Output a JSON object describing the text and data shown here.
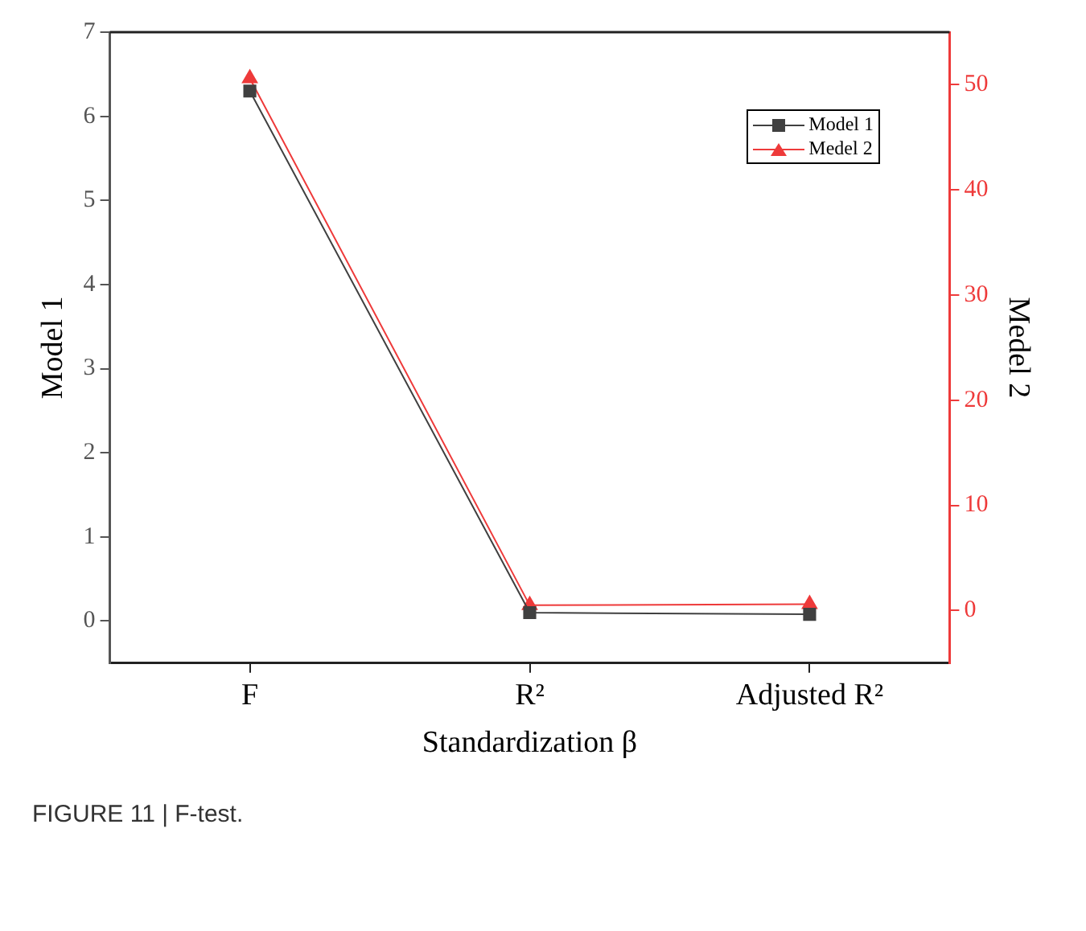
{
  "chart_data": {
    "type": "line",
    "xlabel": "Standardization β",
    "ylabel": "Model 1",
    "y2label": "Medel 2",
    "categories": [
      "F",
      "R²",
      "Adjusted R²"
    ],
    "series": [
      {
        "name": "Model 1",
        "color": "#404040",
        "values": [
          6.3,
          0.1,
          0.08
        ],
        "marker": "square"
      },
      {
        "name": "Medel 2",
        "color": "#ee3a3a",
        "values": [
          50.6,
          0.5,
          0.6
        ],
        "marker": "triangle",
        "axis": "y2"
      }
    ],
    "ylim": [
      -0.5,
      7
    ],
    "yticks": [
      0,
      1,
      2,
      3,
      4,
      5,
      6,
      7
    ],
    "y2lim": [
      -5,
      55
    ],
    "y2ticks": [
      0,
      10,
      20,
      30,
      40,
      50
    ],
    "legend": "top right",
    "grid": false,
    "line_style": "solid",
    "annotations": [
      "FIGURE 11 | F-test."
    ]
  }
}
